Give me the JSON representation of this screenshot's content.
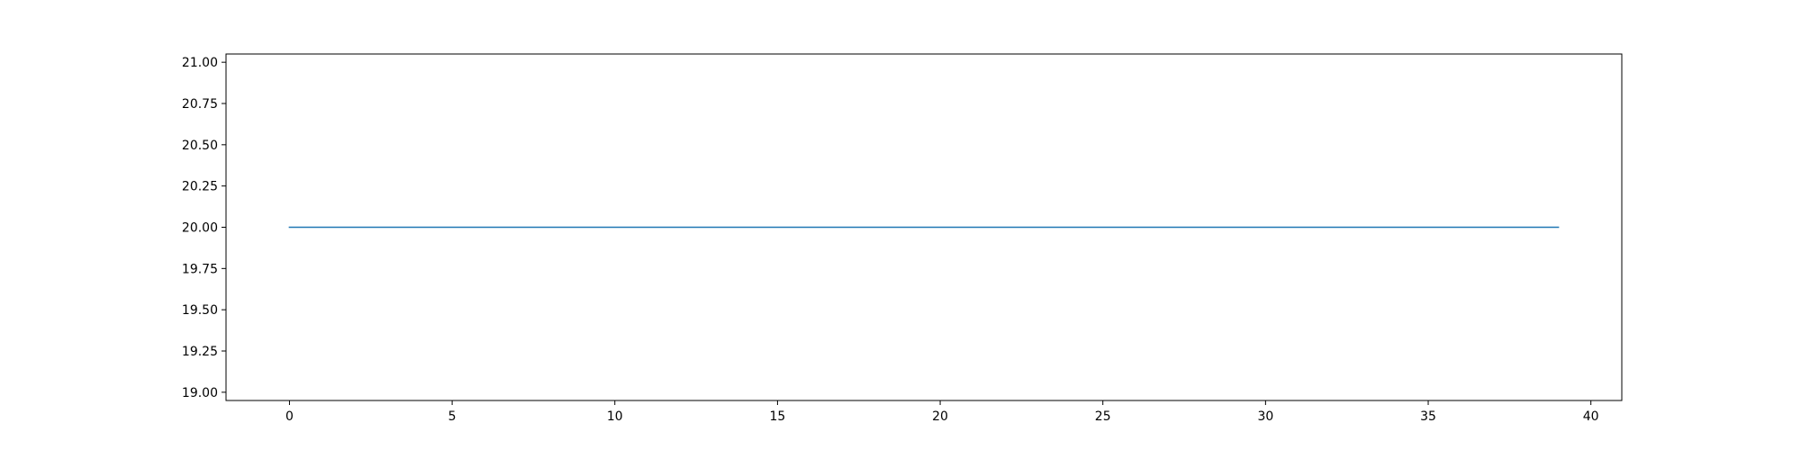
{
  "chart_data": {
    "type": "line",
    "title": "",
    "xlabel": "",
    "ylabel": "",
    "xlim": [
      -1.95,
      40.95
    ],
    "ylim": [
      18.95,
      21.05
    ],
    "grid": false,
    "x_ticks": [
      0,
      5,
      10,
      15,
      20,
      25,
      30,
      35,
      40
    ],
    "x_tick_labels": [
      "0",
      "5",
      "10",
      "15",
      "20",
      "25",
      "30",
      "35",
      "40"
    ],
    "y_ticks": [
      19.0,
      19.25,
      19.5,
      19.75,
      20.0,
      20.25,
      20.5,
      20.75,
      21.0
    ],
    "y_tick_labels": [
      "19.00",
      "19.25",
      "19.50",
      "19.75",
      "20.00",
      "20.25",
      "20.50",
      "20.75",
      "21.00"
    ],
    "x": [
      0,
      1,
      2,
      3,
      4,
      5,
      6,
      7,
      8,
      9,
      10,
      11,
      12,
      13,
      14,
      15,
      16,
      17,
      18,
      19,
      20,
      21,
      22,
      23,
      24,
      25,
      26,
      27,
      28,
      29,
      30,
      31,
      32,
      33,
      34,
      35,
      36,
      37,
      38,
      39
    ],
    "series": [
      {
        "name": "",
        "color": "#1f77b4",
        "values": [
          20,
          20,
          20,
          20,
          20,
          20,
          20,
          20,
          20,
          20,
          20,
          20,
          20,
          20,
          20,
          20,
          20,
          20,
          20,
          20,
          20,
          20,
          20,
          20,
          20,
          20,
          20,
          20,
          20,
          20,
          20,
          20,
          20,
          20,
          20,
          20,
          20,
          20,
          20,
          20
        ]
      }
    ]
  }
}
